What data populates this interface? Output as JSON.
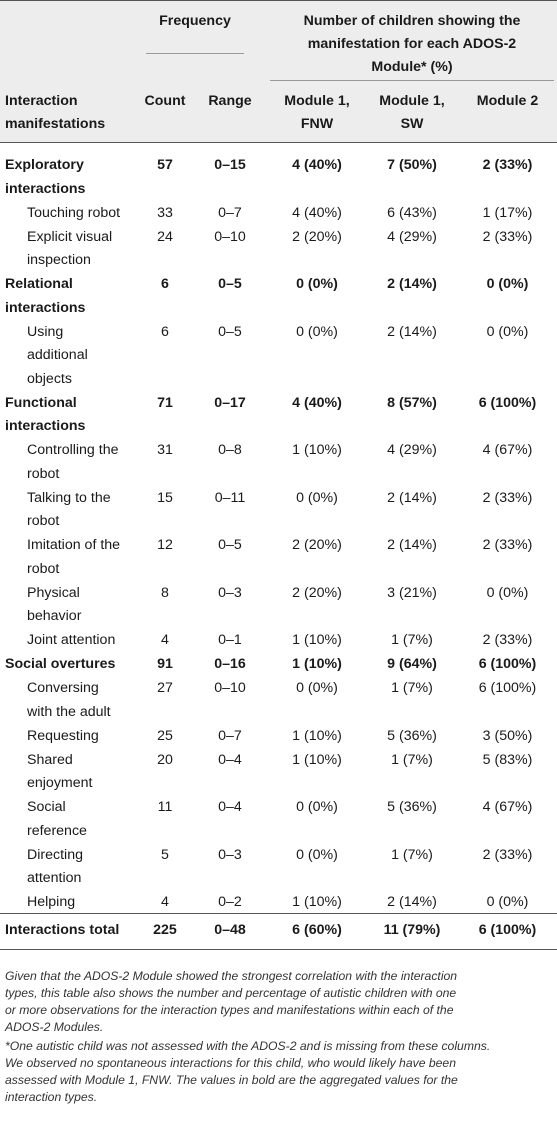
{
  "header": {
    "frequency": "Frequency",
    "modules_title_lines": [
      "Number of children showing the",
      "manifestation for each ADOS-2",
      "Module* (%)"
    ],
    "col_manifestation": [
      "Interaction",
      "manifestations"
    ],
    "col_count": "Count",
    "col_range": "Range",
    "col_m1fnw": [
      "Module 1,",
      "FNW"
    ],
    "col_m1sw": [
      "Module 1,",
      "SW"
    ],
    "col_m2": "Module 2"
  },
  "rows": [
    {
      "label": [
        "Exploratory",
        "interactions"
      ],
      "bold": true,
      "count": "57",
      "range": "0–15",
      "m1fnw": "4 (40%)",
      "m1sw": "7 (50%)",
      "m2": "2 (33%)"
    },
    {
      "label": [
        "Touching robot"
      ],
      "bold": false,
      "count": "33",
      "range": "0–7",
      "m1fnw": "4 (40%)",
      "m1sw": "6 (43%)",
      "m2": "1 (17%)"
    },
    {
      "label": [
        "Explicit visual",
        "inspection"
      ],
      "bold": false,
      "count": "24",
      "range": "0–10",
      "m1fnw": "2 (20%)",
      "m1sw": "4 (29%)",
      "m2": "2 (33%)"
    },
    {
      "label": [
        "Relational",
        "interactions"
      ],
      "bold": true,
      "count": "6",
      "range": "0–5",
      "m1fnw": "0 (0%)",
      "m1sw": "2 (14%)",
      "m2": "0 (0%)"
    },
    {
      "label": [
        "Using",
        "additional",
        "objects"
      ],
      "bold": false,
      "count": "6",
      "range": "0–5",
      "m1fnw": "0 (0%)",
      "m1sw": "2 (14%)",
      "m2": "0 (0%)"
    },
    {
      "label": [
        "Functional",
        "interactions"
      ],
      "bold": true,
      "count": "71",
      "range": "0–17",
      "m1fnw": "4 (40%)",
      "m1sw": "8 (57%)",
      "m2": "6 (100%)"
    },
    {
      "label": [
        "Controlling the",
        "robot"
      ],
      "bold": false,
      "count": "31",
      "range": "0–8",
      "m1fnw": "1 (10%)",
      "m1sw": "4 (29%)",
      "m2": "4 (67%)"
    },
    {
      "label": [
        "Talking to the",
        "robot"
      ],
      "bold": false,
      "count": "15",
      "range": "0–11",
      "m1fnw": "0 (0%)",
      "m1sw": "2 (14%)",
      "m2": "2 (33%)"
    },
    {
      "label": [
        "Imitation of the",
        "robot"
      ],
      "bold": false,
      "count": "12",
      "range": "0–5",
      "m1fnw": "2 (20%)",
      "m1sw": "2 (14%)",
      "m2": "2 (33%)"
    },
    {
      "label": [
        "Physical",
        "behavior"
      ],
      "bold": false,
      "count": "8",
      "range": "0–3",
      "m1fnw": "2 (20%)",
      "m1sw": "3 (21%)",
      "m2": "0 (0%)"
    },
    {
      "label": [
        "Joint attention"
      ],
      "bold": false,
      "count": "4",
      "range": "0–1",
      "m1fnw": "1 (10%)",
      "m1sw": "1 (7%)",
      "m2": "2 (33%)"
    },
    {
      "label": [
        "Social overtures"
      ],
      "bold": true,
      "count": "91",
      "range": "0–16",
      "m1fnw": "1 (10%)",
      "m1sw": "9 (64%)",
      "m2": "6 (100%)"
    },
    {
      "label": [
        "Conversing",
        "with the adult"
      ],
      "bold": false,
      "count": "27",
      "range": "0–10",
      "m1fnw": "0 (0%)",
      "m1sw": "1 (7%)",
      "m2": "6 (100%)"
    },
    {
      "label": [
        "Requesting"
      ],
      "bold": false,
      "count": "25",
      "range": "0–7",
      "m1fnw": "1 (10%)",
      "m1sw": "5 (36%)",
      "m2": "3 (50%)"
    },
    {
      "label": [
        "Shared",
        "enjoyment"
      ],
      "bold": false,
      "count": "20",
      "range": "0–4",
      "m1fnw": "1 (10%)",
      "m1sw": "1 (7%)",
      "m2": "5 (83%)"
    },
    {
      "label": [
        "Social",
        "reference"
      ],
      "bold": false,
      "count": "11",
      "range": "0–4",
      "m1fnw": "0 (0%)",
      "m1sw": "5 (36%)",
      "m2": "4 (67%)"
    },
    {
      "label": [
        "Directing",
        "attention"
      ],
      "bold": false,
      "count": "5",
      "range": "0–3",
      "m1fnw": "0 (0%)",
      "m1sw": "1 (7%)",
      "m2": "2 (33%)"
    },
    {
      "label": [
        "Helping"
      ],
      "bold": false,
      "count": "4",
      "range": "0–2",
      "m1fnw": "1 (10%)",
      "m1sw": "2 (14%)",
      "m2": "0 (0%)"
    },
    {
      "label": [
        "Interactions total"
      ],
      "bold": true,
      "count": "225",
      "range": "0–48",
      "m1fnw": "6 (60%)",
      "m1sw": "11 (79%)",
      "m2": "6 (100%)"
    }
  ],
  "footnotes": [
    [
      "Given that the ADOS-2 Module showed the strongest correlation with the interaction",
      "types, this table also shows the number and percentage of autistic children with one",
      "or more observations for the interaction types and manifestations within each of the",
      "ADOS-2 Modules."
    ],
    [
      "*One autistic child was not assessed with the ADOS-2 and is missing from these columns.",
      "We observed no spontaneous interactions for this child, who would likely have been",
      "assessed with Module 1, FNW. The values in bold are the aggregated values for the",
      "interaction types."
    ]
  ]
}
